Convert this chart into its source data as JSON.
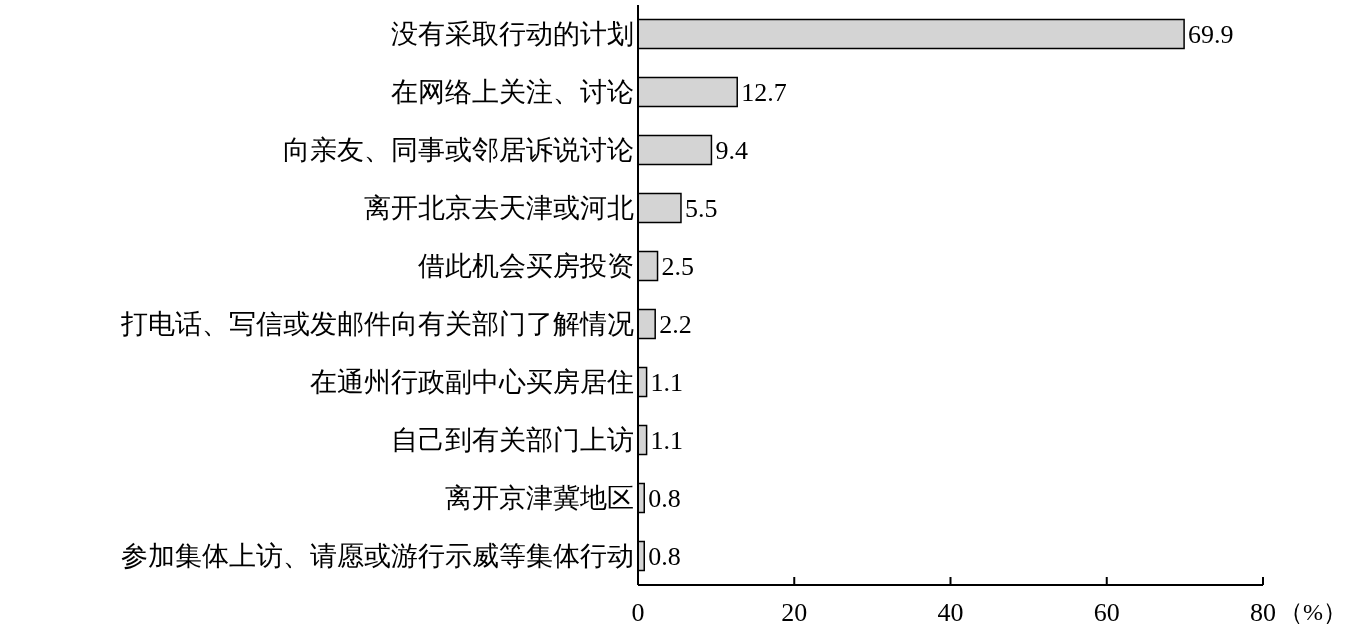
{
  "chart_data": {
    "type": "bar",
    "orientation": "horizontal",
    "xlabel": "（%）",
    "categories": [
      "没有采取行动的计划",
      "在网络上关注、讨论",
      "向亲友、同事或邻居诉说讨论",
      "离开北京去天津或河北",
      "借此机会买房投资",
      "打电话、写信或发邮件向有关部门了解情况",
      "在通州行政副中心买房居住",
      "自己到有关部门上访",
      "离开京津冀地区",
      "参加集体上访、请愿或游行示威等集体行动"
    ],
    "values": [
      69.9,
      12.7,
      9.4,
      5.5,
      2.5,
      2.2,
      1.1,
      1.1,
      0.8,
      0.8
    ],
    "color": "#d4d4d4",
    "xlim": [
      0,
      80
    ],
    "xticks": [
      0,
      20,
      40,
      60,
      80
    ],
    "data_labels": true
  }
}
